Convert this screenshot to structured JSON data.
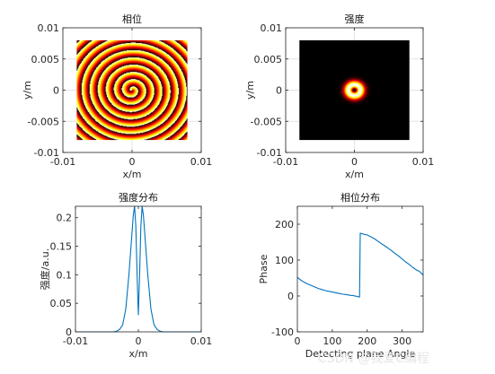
{
  "chart_data": [
    {
      "type": "heatmap",
      "title": "相位",
      "xlabel": "x/m",
      "ylabel": "y/m",
      "xlim": [
        -0.01,
        0.01
      ],
      "ylim": [
        -0.01,
        0.01
      ],
      "xticks": [
        "-0.01",
        "0",
        "0.01"
      ],
      "yticks": [
        "0.01",
        "0.005",
        "0",
        "-0.005",
        "-0.01"
      ],
      "data_extent": [
        -0.008,
        0.008
      ],
      "pattern": "spiral phase (vortex)",
      "colormap": "hot",
      "grid": true
    },
    {
      "type": "heatmap",
      "title": "强度",
      "xlabel": "x/m",
      "ylabel": "y/m",
      "xlim": [
        -0.01,
        0.01
      ],
      "ylim": [
        -0.01,
        0.01
      ],
      "xticks": [
        "-0.01",
        "0",
        "0.01"
      ],
      "yticks": [
        "0.01",
        "0.005",
        "0",
        "-0.005",
        "-0.01"
      ],
      "data_extent": [
        -0.008,
        0.008
      ],
      "pattern": "donut ring at center",
      "colormap": "hot",
      "grid": true
    },
    {
      "type": "line",
      "title": "强度分布",
      "xlabel": "x/m",
      "ylabel": "强度/a.u.",
      "xlim": [
        -0.01,
        0.01
      ],
      "ylim": [
        0,
        0.22
      ],
      "xticks": [
        "-0.01",
        "0",
        "0.01"
      ],
      "yticks": [
        "0",
        "0.05",
        "0.1",
        "0.15",
        "0.2"
      ],
      "x": [
        -0.01,
        -0.004,
        -0.0035,
        -0.003,
        -0.0025,
        -0.002,
        -0.0015,
        -0.001,
        -0.0008,
        -0.0006,
        -0.0004,
        -0.0002,
        0,
        0.0002,
        0.0004,
        0.0006,
        0.0008,
        0.001,
        0.0015,
        0.002,
        0.0025,
        0.003,
        0.0035,
        0.004,
        0.01
      ],
      "series": [
        {
          "values": [
            0,
            0,
            0.001,
            0.004,
            0.012,
            0.04,
            0.1,
            0.175,
            0.205,
            0.22,
            0.185,
            0.1,
            0.03,
            0.1,
            0.185,
            0.22,
            0.205,
            0.175,
            0.1,
            0.04,
            0.012,
            0.004,
            0.001,
            0,
            0
          ],
          "color": "#0072bd"
        }
      ]
    },
    {
      "type": "line",
      "title": "相位分布",
      "xlabel": "Detecting plane Angle",
      "ylabel": "Phase",
      "xlim": [
        0,
        360
      ],
      "ylim": [
        -100,
        250
      ],
      "xticks": [
        "0",
        "100",
        "200",
        "300"
      ],
      "yticks": [
        "-100",
        "0",
        "100",
        "200"
      ],
      "x": [
        0,
        10,
        20,
        30,
        40,
        50,
        60,
        70,
        80,
        90,
        100,
        110,
        120,
        130,
        140,
        150,
        160,
        170,
        178,
        180,
        185,
        190,
        200,
        210,
        220,
        230,
        240,
        250,
        260,
        270,
        280,
        290,
        300,
        310,
        320,
        330,
        340,
        350,
        360
      ],
      "series": [
        {
          "values": [
            52,
            44,
            38,
            33,
            29,
            25,
            21,
            18,
            15,
            13,
            11,
            9,
            7,
            5,
            4,
            2,
            1,
            -1,
            -3,
            175,
            174,
            172,
            170,
            165,
            160,
            153,
            146,
            140,
            133,
            126,
            118,
            111,
            103,
            95,
            88,
            80,
            73,
            68,
            58
          ],
          "color": "#0072bd"
        }
      ]
    }
  ],
  "watermark": "CSDN @我爱C编程"
}
